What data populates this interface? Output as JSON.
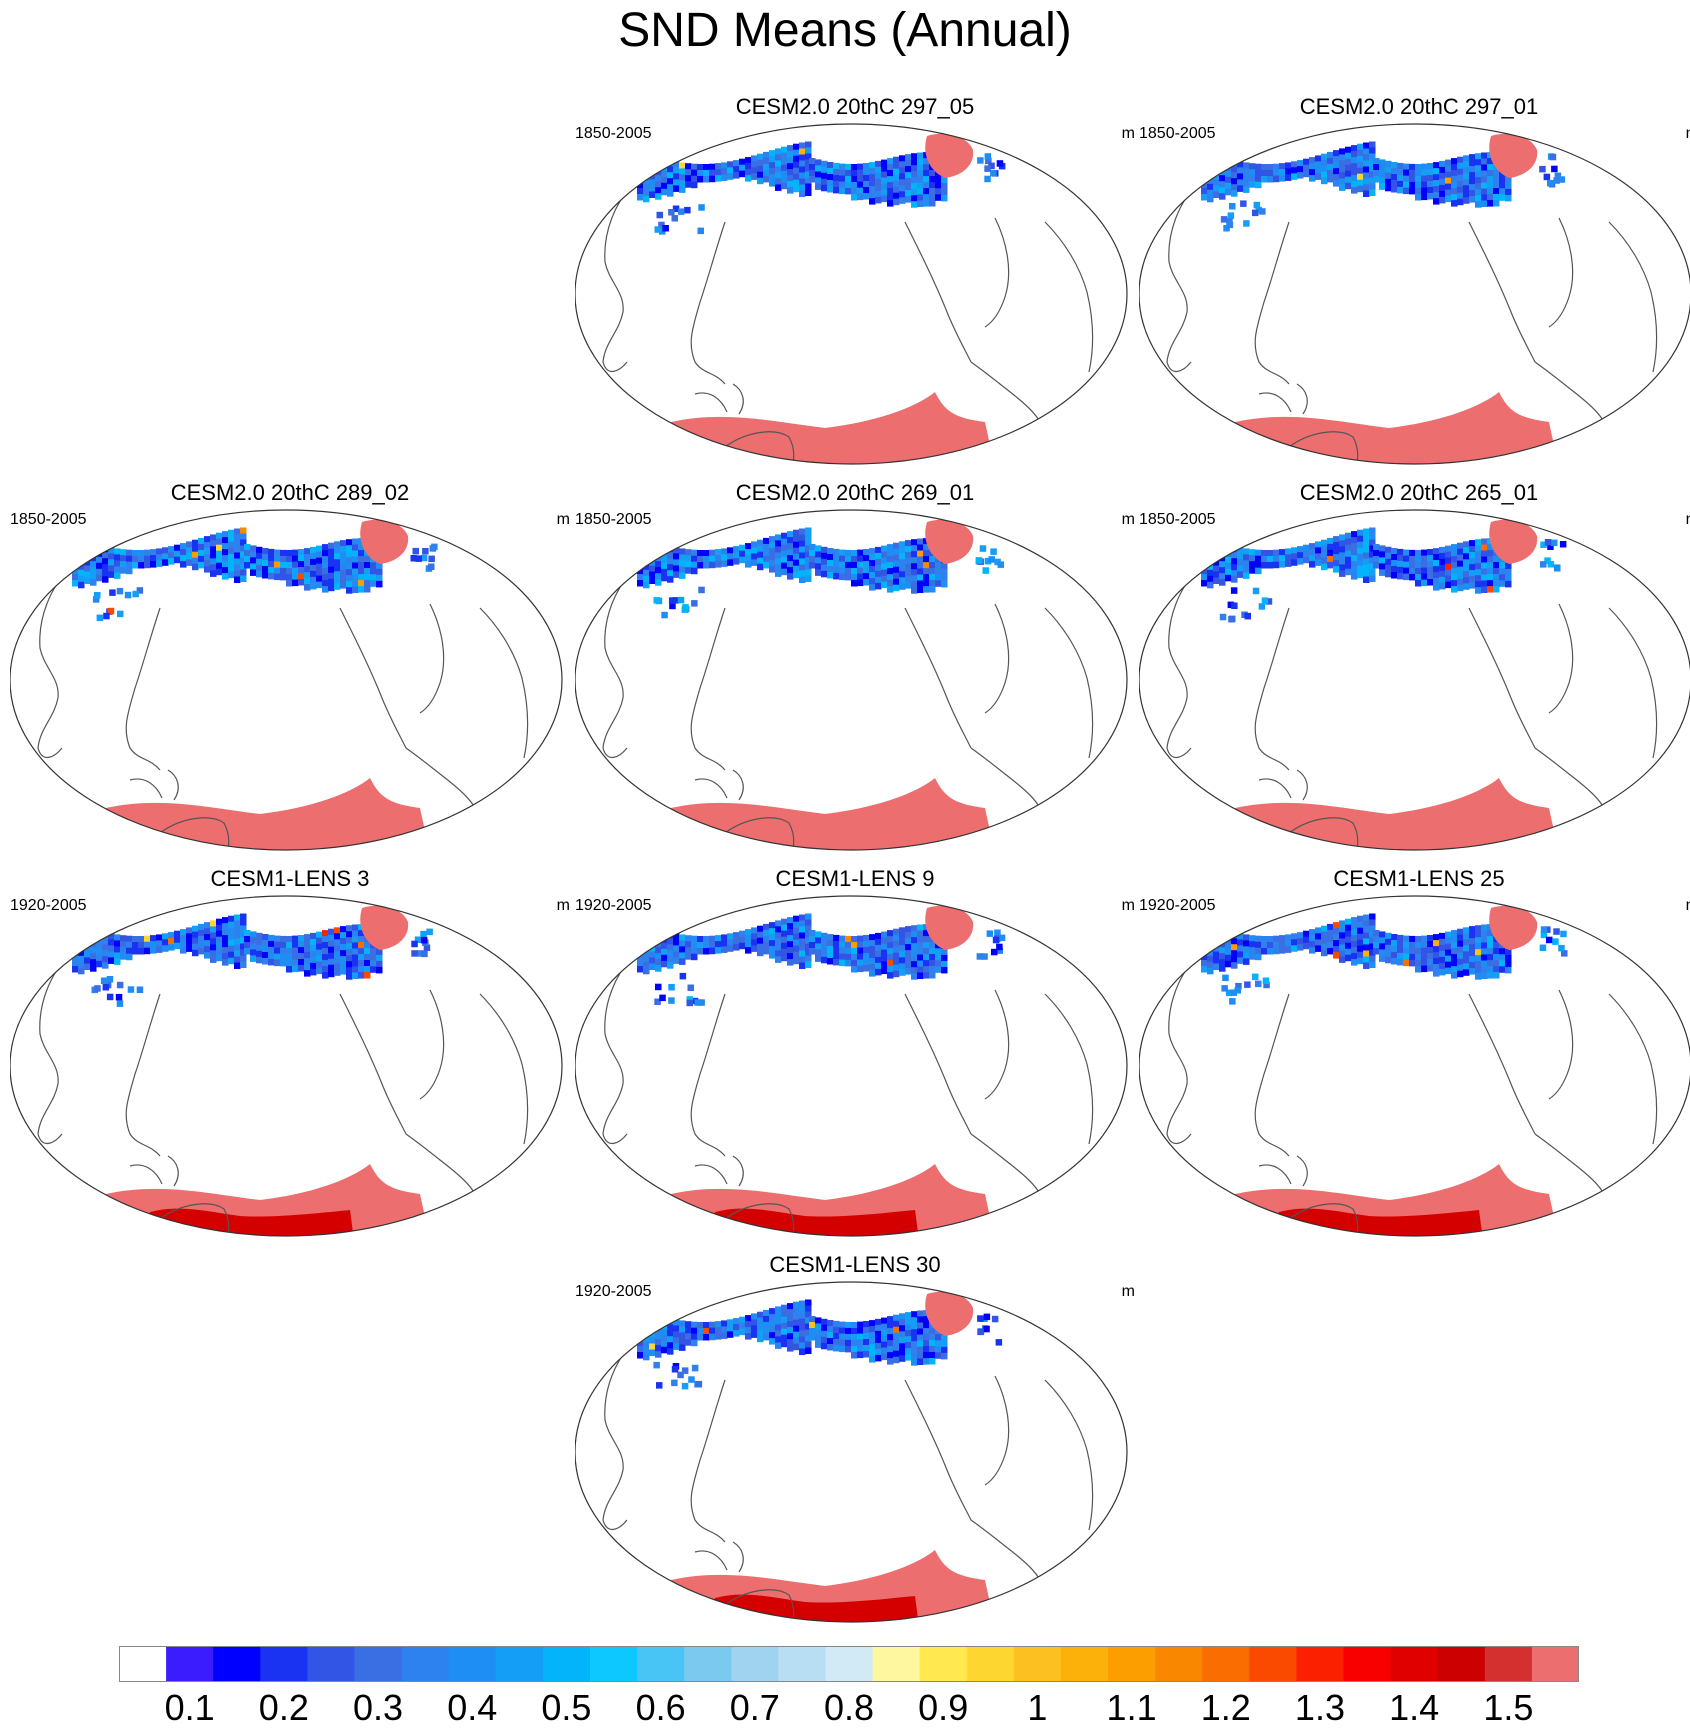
{
  "title": "SND Means (Annual)",
  "colors": {
    "coast": "#555555",
    "border": "#333333",
    "ice": "#ec6e6e",
    "ice_deep": "#d40000"
  },
  "panels": [
    {
      "title": "CESM2.0 20thC 297_05",
      "period": "1850-2005",
      "unit": "m",
      "row": 0,
      "col": 1,
      "variant": "cesm2"
    },
    {
      "title": "CESM2.0 20thC 297_01",
      "period": "1850-2005",
      "unit": "m",
      "row": 0,
      "col": 2,
      "variant": "cesm2"
    },
    {
      "title": "CESM2.0 20thC 289_02",
      "period": "1850-2005",
      "unit": "m",
      "row": 1,
      "col": 0,
      "variant": "cesm2"
    },
    {
      "title": "CESM2.0 20thC 269_01",
      "period": "1850-2005",
      "unit": "m",
      "row": 1,
      "col": 1,
      "variant": "cesm2"
    },
    {
      "title": "CESM2.0 20thC 265_01",
      "period": "1850-2005",
      "unit": "m",
      "row": 1,
      "col": 2,
      "variant": "cesm2"
    },
    {
      "title": "CESM1-LENS 3",
      "period": "1920-2005",
      "unit": "m",
      "row": 2,
      "col": 0,
      "variant": "lens"
    },
    {
      "title": "CESM1-LENS 9",
      "period": "1920-2005",
      "unit": "m",
      "row": 2,
      "col": 1,
      "variant": "lens"
    },
    {
      "title": "CESM1-LENS 25",
      "period": "1920-2005",
      "unit": "m",
      "row": 2,
      "col": 2,
      "variant": "lens"
    },
    {
      "title": "CESM1-LENS 30",
      "period": "1920-2005",
      "unit": "m",
      "row": 3,
      "col": 1,
      "variant": "lens"
    }
  ],
  "colorbar": {
    "labels": [
      "0.1",
      "0.2",
      "0.3",
      "0.4",
      "0.5",
      "0.6",
      "0.7",
      "0.8",
      "0.9",
      "1",
      "1.1",
      "1.2",
      "1.3",
      "1.4",
      "1.5"
    ],
    "colors": [
      "#ffffff",
      "#3b1cff",
      "#0000ff",
      "#1a33f2",
      "#3355e6",
      "#3a6ee3",
      "#2e82f0",
      "#1e8ef5",
      "#149ef5",
      "#04b4fa",
      "#0cc8ff",
      "#48c4f5",
      "#7cc9ef",
      "#9fd3ef",
      "#b7def2",
      "#d2e9f6",
      "#fff7a0",
      "#ffe850",
      "#fdd630",
      "#fcc020",
      "#fcb00a",
      "#fc9d00",
      "#fa8700",
      "#fa6d00",
      "#fa4a00",
      "#fa2000",
      "#f80000",
      "#e00000",
      "#cc0000",
      "#d43030",
      "#ec6e6e"
    ]
  }
}
